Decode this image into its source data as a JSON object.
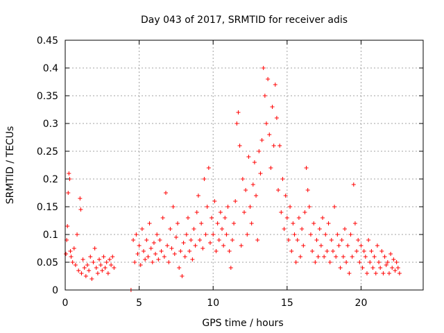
{
  "chart_data": {
    "type": "scatter",
    "title": "Day 043 of 2017, SRMTID for receiver adis",
    "xlabel": "GPS time / hours",
    "ylabel": "SRMTID / TECUs",
    "xlim": [
      0,
      24.2
    ],
    "ylim": [
      0,
      0.45
    ],
    "xticks": [
      0,
      5,
      10,
      15,
      20
    ],
    "xtick_labels": [
      "0",
      "5",
      "10",
      "15",
      "20"
    ],
    "yticks": [
      0,
      0.05,
      0.1,
      0.15,
      0.2,
      0.25,
      0.3,
      0.35,
      0.4,
      0.45
    ],
    "ytick_labels": [
      "0",
      "0.05",
      "0.1",
      "0.15",
      "0.2",
      "0.25",
      "0.3",
      "0.35",
      "0.4",
      "0.45"
    ],
    "grid": true,
    "marker": "+",
    "color": "#ff0000",
    "series": [
      {
        "name": "SRMTID",
        "points": [
          [
            0.05,
            0.065
          ],
          [
            0.1,
            0.09
          ],
          [
            0.15,
            0.115
          ],
          [
            0.2,
            0.175
          ],
          [
            0.25,
            0.21
          ],
          [
            0.3,
            0.2
          ],
          [
            0.35,
            0.07
          ],
          [
            0.4,
            0.06
          ],
          [
            0.5,
            0.05
          ],
          [
            0.6,
            0.075
          ],
          [
            0.7,
            0.045
          ],
          [
            0.8,
            0.1
          ],
          [
            0.9,
            0.035
          ],
          [
            1.0,
            0.165
          ],
          [
            1.05,
            0.145
          ],
          [
            1.1,
            0.03
          ],
          [
            1.2,
            0.055
          ],
          [
            1.3,
            0.04
          ],
          [
            1.4,
            0.025
          ],
          [
            1.5,
            0.045
          ],
          [
            1.6,
            0.035
          ],
          [
            1.7,
            0.06
          ],
          [
            1.8,
            0.02
          ],
          [
            1.9,
            0.05
          ],
          [
            2.0,
            0.075
          ],
          [
            2.1,
            0.04
          ],
          [
            2.2,
            0.03
          ],
          [
            2.3,
            0.055
          ],
          [
            2.4,
            0.045
          ],
          [
            2.5,
            0.035
          ],
          [
            2.6,
            0.06
          ],
          [
            2.7,
            0.04
          ],
          [
            2.8,
            0.05
          ],
          [
            2.9,
            0.03
          ],
          [
            3.0,
            0.055
          ],
          [
            3.1,
            0.045
          ],
          [
            3.2,
            0.06
          ],
          [
            3.3,
            0.04
          ],
          [
            4.45,
            0.0
          ],
          [
            4.6,
            0.09
          ],
          [
            4.7,
            0.05
          ],
          [
            4.8,
            0.1
          ],
          [
            4.9,
            0.065
          ],
          [
            5.0,
            0.08
          ],
          [
            5.1,
            0.045
          ],
          [
            5.2,
            0.11
          ],
          [
            5.3,
            0.07
          ],
          [
            5.4,
            0.055
          ],
          [
            5.5,
            0.09
          ],
          [
            5.6,
            0.06
          ],
          [
            5.7,
            0.12
          ],
          [
            5.8,
            0.075
          ],
          [
            5.9,
            0.05
          ],
          [
            6.0,
            0.085
          ],
          [
            6.1,
            0.065
          ],
          [
            6.2,
            0.1
          ],
          [
            6.3,
            0.055
          ],
          [
            6.4,
            0.09
          ],
          [
            6.5,
            0.07
          ],
          [
            6.6,
            0.13
          ],
          [
            6.7,
            0.06
          ],
          [
            6.8,
            0.175
          ],
          [
            6.9,
            0.08
          ],
          [
            7.0,
            0.05
          ],
          [
            7.1,
            0.11
          ],
          [
            7.2,
            0.075
          ],
          [
            7.3,
            0.15
          ],
          [
            7.4,
            0.065
          ],
          [
            7.5,
            0.095
          ],
          [
            7.6,
            0.12
          ],
          [
            7.7,
            0.04
          ],
          [
            7.8,
            0.07
          ],
          [
            7.9,
            0.025
          ],
          [
            8.0,
            0.085
          ],
          [
            8.1,
            0.06
          ],
          [
            8.2,
            0.1
          ],
          [
            8.3,
            0.13
          ],
          [
            8.4,
            0.07
          ],
          [
            8.5,
            0.09
          ],
          [
            8.6,
            0.055
          ],
          [
            8.7,
            0.11
          ],
          [
            8.8,
            0.08
          ],
          [
            8.9,
            0.14
          ],
          [
            9.0,
            0.17
          ],
          [
            9.1,
            0.09
          ],
          [
            9.2,
            0.12
          ],
          [
            9.3,
            0.075
          ],
          [
            9.4,
            0.2
          ],
          [
            9.5,
            0.1
          ],
          [
            9.6,
            0.15
          ],
          [
            9.7,
            0.22
          ],
          [
            9.8,
            0.085
          ],
          [
            9.9,
            0.13
          ],
          [
            10.0,
            0.1
          ],
          [
            10.1,
            0.16
          ],
          [
            10.2,
            0.07
          ],
          [
            10.3,
            0.12
          ],
          [
            10.4,
            0.09
          ],
          [
            10.5,
            0.14
          ],
          [
            10.6,
            0.11
          ],
          [
            10.7,
            0.08
          ],
          [
            10.8,
            0.13
          ],
          [
            10.9,
            0.1
          ],
          [
            11.0,
            0.15
          ],
          [
            11.1,
            0.07
          ],
          [
            11.2,
            0.04
          ],
          [
            11.3,
            0.09
          ],
          [
            11.4,
            0.12
          ],
          [
            11.5,
            0.16
          ],
          [
            11.6,
            0.3
          ],
          [
            11.7,
            0.32
          ],
          [
            11.8,
            0.26
          ],
          [
            11.9,
            0.08
          ],
          [
            12.0,
            0.2
          ],
          [
            12.1,
            0.14
          ],
          [
            12.2,
            0.18
          ],
          [
            12.3,
            0.1
          ],
          [
            12.4,
            0.24
          ],
          [
            12.5,
            0.15
          ],
          [
            12.6,
            0.12
          ],
          [
            12.7,
            0.19
          ],
          [
            12.8,
            0.23
          ],
          [
            12.9,
            0.17
          ],
          [
            13.0,
            0.09
          ],
          [
            13.1,
            0.25
          ],
          [
            13.2,
            0.21
          ],
          [
            13.3,
            0.27
          ],
          [
            13.4,
            0.4
          ],
          [
            13.5,
            0.35
          ],
          [
            13.6,
            0.3
          ],
          [
            13.7,
            0.38
          ],
          [
            13.8,
            0.28
          ],
          [
            13.9,
            0.22
          ],
          [
            14.0,
            0.33
          ],
          [
            14.1,
            0.26
          ],
          [
            14.2,
            0.37
          ],
          [
            14.3,
            0.31
          ],
          [
            14.4,
            0.18
          ],
          [
            14.5,
            0.26
          ],
          [
            14.6,
            0.14
          ],
          [
            14.7,
            0.2
          ],
          [
            14.8,
            0.11
          ],
          [
            14.9,
            0.17
          ],
          [
            15.0,
            0.13
          ],
          [
            15.1,
            0.09
          ],
          [
            15.2,
            0.15
          ],
          [
            15.3,
            0.07
          ],
          [
            15.4,
            0.12
          ],
          [
            15.5,
            0.1
          ],
          [
            15.6,
            0.05
          ],
          [
            15.7,
            0.09
          ],
          [
            15.8,
            0.13
          ],
          [
            15.9,
            0.06
          ],
          [
            16.0,
            0.11
          ],
          [
            16.1,
            0.08
          ],
          [
            16.2,
            0.14
          ],
          [
            16.3,
            0.22
          ],
          [
            16.4,
            0.18
          ],
          [
            16.5,
            0.15
          ],
          [
            16.6,
            0.1
          ],
          [
            16.7,
            0.07
          ],
          [
            16.8,
            0.12
          ],
          [
            16.9,
            0.05
          ],
          [
            17.0,
            0.09
          ],
          [
            17.1,
            0.06
          ],
          [
            17.2,
            0.11
          ],
          [
            17.3,
            0.08
          ],
          [
            17.4,
            0.13
          ],
          [
            17.5,
            0.06
          ],
          [
            17.6,
            0.1
          ],
          [
            17.7,
            0.07
          ],
          [
            17.8,
            0.12
          ],
          [
            17.9,
            0.05
          ],
          [
            18.0,
            0.09
          ],
          [
            18.1,
            0.07
          ],
          [
            18.2,
            0.15
          ],
          [
            18.3,
            0.06
          ],
          [
            18.4,
            0.1
          ],
          [
            18.5,
            0.08
          ],
          [
            18.6,
            0.04
          ],
          [
            18.7,
            0.09
          ],
          [
            18.8,
            0.06
          ],
          [
            18.9,
            0.11
          ],
          [
            19.0,
            0.05
          ],
          [
            19.1,
            0.08
          ],
          [
            19.2,
            0.03
          ],
          [
            19.3,
            0.1
          ],
          [
            19.4,
            0.06
          ],
          [
            19.5,
            0.19
          ],
          [
            19.6,
            0.12
          ],
          [
            19.7,
            0.07
          ],
          [
            19.8,
            0.09
          ],
          [
            19.9,
            0.05
          ],
          [
            20.0,
            0.08
          ],
          [
            20.1,
            0.04
          ],
          [
            20.2,
            0.07
          ],
          [
            20.3,
            0.06
          ],
          [
            20.4,
            0.03
          ],
          [
            20.5,
            0.09
          ],
          [
            20.6,
            0.05
          ],
          [
            20.7,
            0.07
          ],
          [
            20.8,
            0.04
          ],
          [
            20.9,
            0.06
          ],
          [
            21.0,
            0.03
          ],
          [
            21.1,
            0.08
          ],
          [
            21.2,
            0.05
          ],
          [
            21.3,
            0.04
          ],
          [
            21.4,
            0.07
          ],
          [
            21.5,
            0.03
          ],
          [
            21.6,
            0.06
          ],
          [
            21.7,
            0.045
          ],
          [
            21.8,
            0.05
          ],
          [
            21.9,
            0.03
          ],
          [
            22.0,
            0.065
          ],
          [
            22.1,
            0.04
          ],
          [
            22.2,
            0.055
          ],
          [
            22.3,
            0.035
          ],
          [
            22.4,
            0.05
          ],
          [
            22.5,
            0.04
          ],
          [
            22.6,
            0.03
          ]
        ]
      }
    ]
  }
}
